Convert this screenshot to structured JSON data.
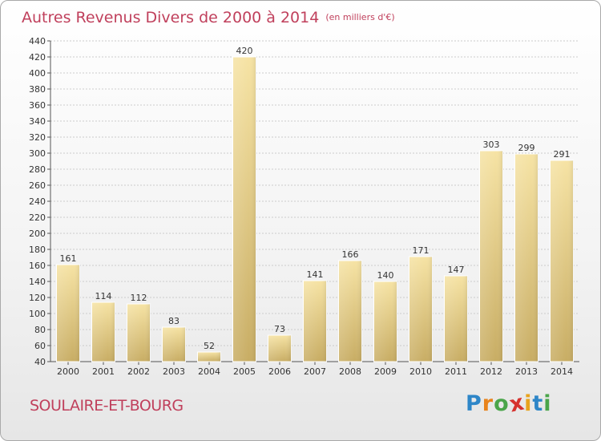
{
  "header": {
    "title": "Autres Revenus Divers de 2000 à 2014",
    "subtitle": "(en milliers d'€)"
  },
  "footer": {
    "commune": "SOULAIRE-ET-BOURG",
    "logo_letters": [
      "P",
      "r",
      "o",
      "x",
      "i",
      "t",
      "i"
    ],
    "logo_colors": [
      "#2e86c8",
      "#e8831c",
      "#4aa54a",
      "#d6322e",
      "#e8a31c",
      "#2e86c8",
      "#4aa54a"
    ]
  },
  "colors": {
    "title": "#c0405c",
    "bar_light": "#f6e3a4",
    "bar_dark": "#c8ad64",
    "grid": "#cccccc"
  },
  "chart_data": {
    "type": "bar",
    "title": "Autres Revenus Divers de 2000 à 2014",
    "subtitle": "(en milliers d'€)",
    "categories": [
      "2000",
      "2001",
      "2002",
      "2003",
      "2004",
      "2005",
      "2006",
      "2007",
      "2008",
      "2009",
      "2010",
      "2011",
      "2012",
      "2013",
      "2014"
    ],
    "values": [
      161,
      114,
      112,
      83,
      52,
      420,
      73,
      141,
      166,
      140,
      171,
      147,
      303,
      299,
      291
    ],
    "ylim": [
      40,
      440
    ],
    "yticks": [
      40,
      60,
      80,
      100,
      120,
      140,
      160,
      180,
      200,
      220,
      240,
      260,
      280,
      300,
      320,
      340,
      360,
      380,
      400,
      420,
      440
    ],
    "grid": true,
    "data_labels": true
  }
}
